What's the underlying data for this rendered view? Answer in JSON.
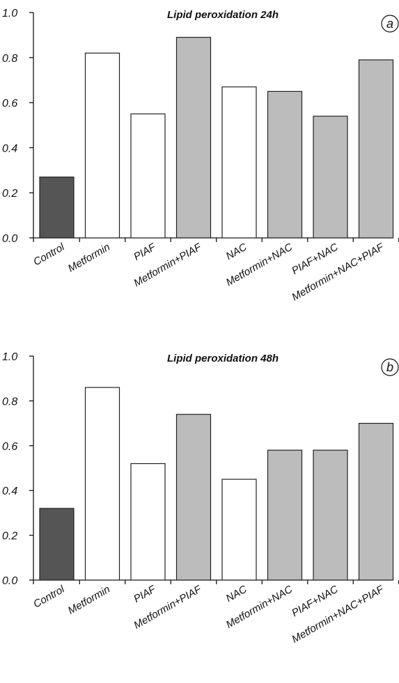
{
  "chart_data": [
    {
      "type": "bar",
      "title": "Lipid peroxidation 24h",
      "panel_label": "a",
      "categories": [
        "Control",
        "Metformin",
        "PIAF",
        "Metformin+PIAF",
        "NAC",
        "Metformin+NAC",
        "PIAF+NAC",
        "Metformin+NAC+PIAF"
      ],
      "values": [
        0.27,
        0.82,
        0.55,
        0.89,
        0.67,
        0.65,
        0.54,
        0.79
      ],
      "bar_colors": [
        "#555555",
        "#ffffff",
        "#ffffff",
        "#bcbcbc",
        "#ffffff",
        "#bcbcbc",
        "#bcbcbc",
        "#bcbcbc"
      ],
      "ylim": [
        0,
        1
      ],
      "yticks": [
        "0.0",
        "0.2",
        "0.4",
        "0.6",
        "0.8",
        "1.0"
      ],
      "xlabel": "",
      "ylabel": "",
      "grid": false
    },
    {
      "type": "bar",
      "title": "Lipid peroxidation 48h",
      "panel_label": "b",
      "categories": [
        "Control",
        "Metformin",
        "PIAF",
        "Metformin+PIAF",
        "NAC",
        "Metformin+NAC",
        "PIAF+NAC",
        "Metformin+NAC+PIAF"
      ],
      "values": [
        0.32,
        0.86,
        0.52,
        0.74,
        0.45,
        0.58,
        0.58,
        0.7
      ],
      "bar_colors": [
        "#555555",
        "#ffffff",
        "#ffffff",
        "#bcbcbc",
        "#ffffff",
        "#bcbcbc",
        "#bcbcbc",
        "#bcbcbc"
      ],
      "ylim": [
        0,
        1
      ],
      "yticks": [
        "0.0",
        "0.2",
        "0.4",
        "0.6",
        "0.8",
        "1.0"
      ],
      "xlabel": "",
      "ylabel": "",
      "grid": false
    }
  ]
}
